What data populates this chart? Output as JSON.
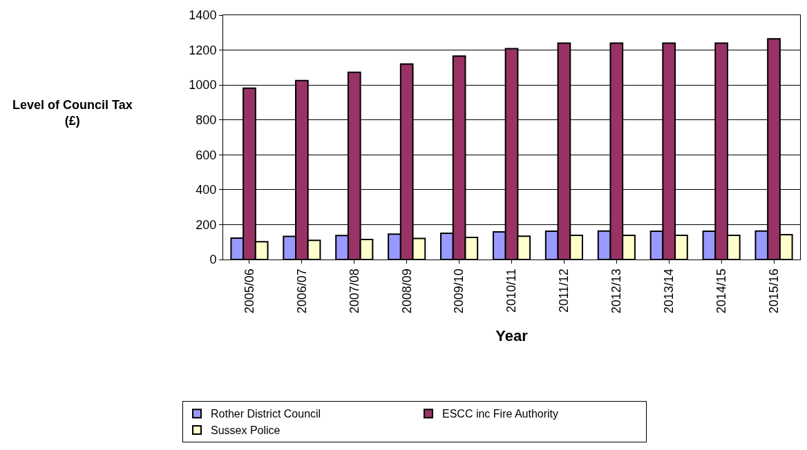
{
  "chart_data": {
    "type": "bar",
    "xlabel": "Year",
    "ylabel": "Level of Council Tax (£)",
    "categories": [
      "2005/06",
      "2006/07",
      "2007/08",
      "2008/09",
      "2009/10",
      "2010/11",
      "2011/12",
      "2012/13",
      "2013/14",
      "2014/15",
      "2015/16"
    ],
    "series": [
      {
        "name": "Rother District Council",
        "color": "#9999ff",
        "values": [
          123,
          132,
          137,
          145,
          150,
          158,
          162,
          163,
          162,
          162,
          163
        ]
      },
      {
        "name": "ESCC inc Fire Authority",
        "color": "#993366",
        "values": [
          982,
          1025,
          1073,
          1120,
          1166,
          1208,
          1240,
          1240,
          1240,
          1240,
          1265
        ]
      },
      {
        "name": "Sussex Police",
        "color": "#ffffcc",
        "values": [
          102,
          110,
          115,
          121,
          127,
          133,
          138,
          138,
          138,
          138,
          142
        ]
      }
    ],
    "ylim": [
      0,
      1400
    ],
    "yticks": [
      0,
      200,
      400,
      600,
      800,
      1000,
      1200,
      1400
    ],
    "grid": "y",
    "legend": "bottom"
  }
}
